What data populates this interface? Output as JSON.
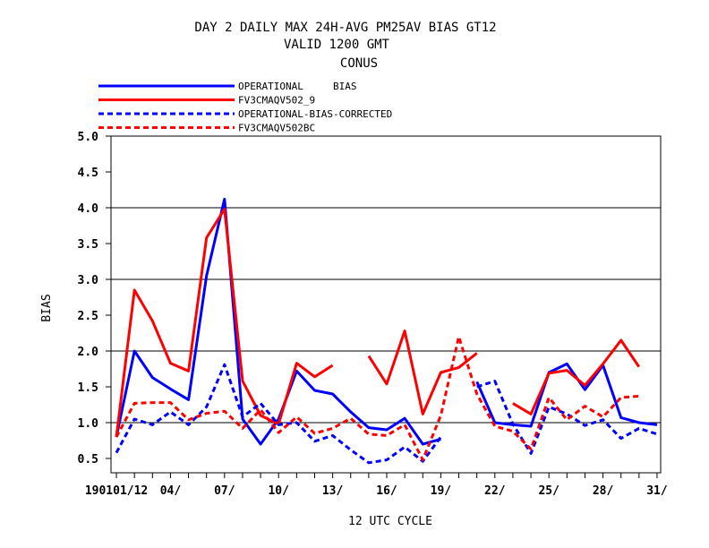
{
  "chart_data": {
    "type": "line",
    "title_lines": [
      "DAY 2 DAILY MAX   24H-AVG PM25AV BIAS GT12",
      "VALID 1200 GMT",
      "CONUS"
    ],
    "xlabel": "12 UTC CYCLE",
    "ylabel": "BIAS",
    "ylim": [
      0.3,
      5.0
    ],
    "yticks": [
      "0.5",
      "1.0",
      "1.5",
      "2.0",
      "2.5",
      "3.0",
      "3.5",
      "4.0",
      "4.5",
      "5.0"
    ],
    "xlim": [
      0.7,
      31.2
    ],
    "xticks": [
      {
        "x": 1,
        "label": "190101/12"
      },
      {
        "x": 4,
        "label": "04/"
      },
      {
        "x": 7,
        "label": "07/"
      },
      {
        "x": 10,
        "label": "10/"
      },
      {
        "x": 13,
        "label": "13/"
      },
      {
        "x": 16,
        "label": "16/"
      },
      {
        "x": 19,
        "label": "19/"
      },
      {
        "x": 22,
        "label": "22/"
      },
      {
        "x": 25,
        "label": "25/"
      },
      {
        "x": 28,
        "label": "28/"
      },
      {
        "x": 31,
        "label": "31/"
      }
    ],
    "grid_y": [
      1.0,
      2.0,
      3.0,
      4.0
    ],
    "legend_position": "top-left",
    "x": [
      1,
      2,
      3,
      4,
      5,
      6,
      7,
      8,
      9,
      10,
      11,
      12,
      13,
      14,
      15,
      16,
      17,
      18,
      19,
      20,
      21,
      22,
      23,
      24,
      25,
      26,
      27,
      28,
      29,
      30,
      31
    ],
    "series": [
      {
        "name": "OPERATIONAL     BIAS",
        "color": "#0000ff",
        "dash": false,
        "values": [
          0.8,
          2.0,
          1.63,
          1.47,
          1.32,
          3.05,
          4.12,
          1.05,
          0.7,
          1.05,
          1.72,
          1.45,
          1.4,
          1.15,
          0.93,
          0.9,
          1.06,
          0.7,
          0.77,
          null,
          1.57,
          1.0,
          0.97,
          0.95,
          1.7,
          1.82,
          1.46,
          1.8,
          1.07,
          1.0,
          0.97
        ]
      },
      {
        "name": "FV3CMAQV502_9",
        "color": "#ff0000",
        "dash": false,
        "values": [
          0.8,
          2.85,
          2.42,
          1.83,
          1.72,
          3.58,
          3.98,
          1.58,
          1.1,
          0.98,
          1.83,
          1.64,
          1.8,
          null,
          1.93,
          1.54,
          2.28,
          1.12,
          1.7,
          1.77,
          1.97,
          null,
          1.27,
          1.12,
          1.69,
          1.73,
          1.52,
          1.82,
          2.15,
          1.78,
          null
        ]
      },
      {
        "name": "OPERATIONAL-BIAS-CORRECTED",
        "color": "#0000ff",
        "dash": true,
        "values": [
          0.58,
          1.05,
          0.97,
          1.15,
          0.97,
          1.22,
          1.81,
          1.08,
          1.27,
          0.97,
          1.0,
          0.74,
          0.82,
          0.62,
          0.44,
          0.48,
          0.66,
          0.46,
          0.8,
          null,
          1.5,
          1.58,
          0.98,
          0.57,
          1.22,
          1.12,
          0.96,
          1.04,
          0.78,
          0.92,
          0.84
        ]
      },
      {
        "name": "FV3CMAQV502BC",
        "color": "#ff0000",
        "dash": true,
        "values": [
          0.8,
          1.27,
          1.28,
          1.28,
          1.04,
          1.13,
          1.16,
          0.92,
          1.18,
          0.86,
          1.08,
          0.85,
          0.92,
          1.06,
          0.84,
          0.82,
          0.97,
          0.48,
          1.1,
          2.2,
          1.4,
          0.95,
          0.88,
          0.63,
          1.35,
          1.04,
          1.23,
          1.08,
          1.35,
          1.37,
          null
        ]
      }
    ]
  }
}
